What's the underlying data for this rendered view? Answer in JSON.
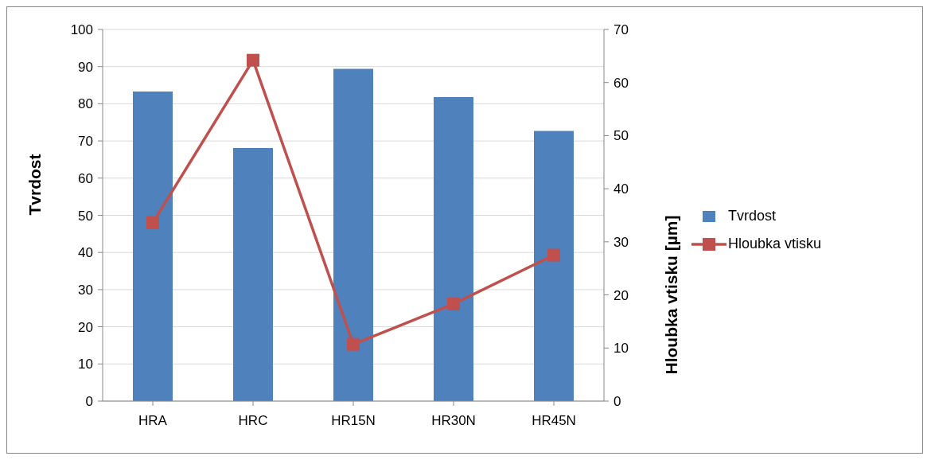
{
  "chart_data": {
    "type": "bar",
    "categories": [
      "HRA",
      "HRC",
      "HR15N",
      "HR30N",
      "HR45N"
    ],
    "series": [
      {
        "name": "Tvrdost",
        "color": "#4f81bd",
        "values": [
          83.3,
          68.1,
          89.4,
          81.8,
          72.7
        ]
      },
      {
        "name": "Hloubka vtisku",
        "type": "line",
        "axis": "y2",
        "color": "#c0504d",
        "values": [
          33.6,
          64.2,
          10.7,
          18.3,
          27.5
        ]
      }
    ],
    "ylabel": "Tvrdost",
    "y2label": "Hloubka vtisku [µm]",
    "ylim": [
      0,
      100
    ],
    "yticks": [
      0,
      10,
      20,
      30,
      40,
      50,
      60,
      70,
      80,
      90,
      100
    ],
    "y2lim": [
      0,
      70
    ],
    "y2ticks": [
      0,
      10,
      20,
      30,
      40,
      50,
      60,
      70
    ],
    "grid": "y",
    "legend": "right",
    "marker": "square"
  }
}
